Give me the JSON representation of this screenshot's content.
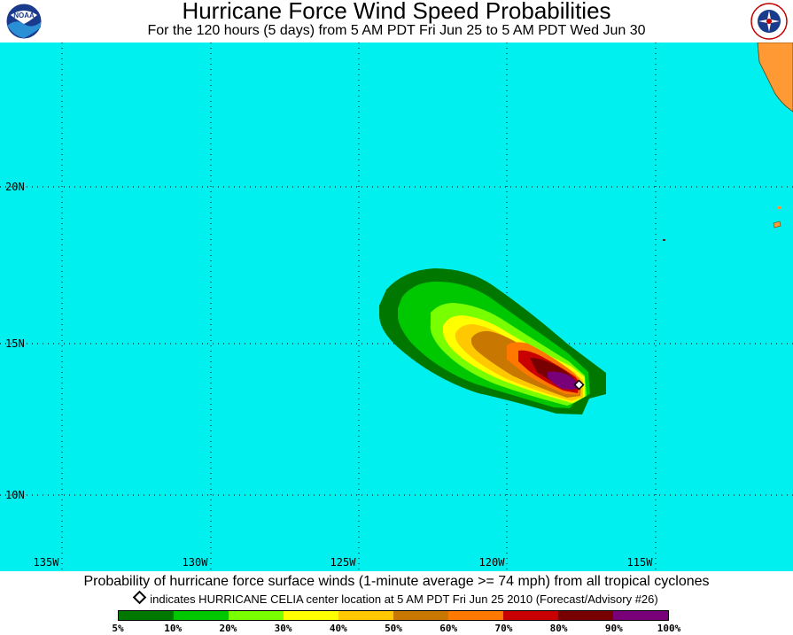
{
  "header": {
    "title": "Hurricane Force Wind Speed Probabilities",
    "subtitle": "For the 120 hours (5 days) from 5 AM PDT Fri Jun 25 to 5 AM PDT Wed Jun 30",
    "left_logo": "noaa-logo-icon",
    "right_logo": "national-weather-service-logo-icon",
    "left_logo_text": "NOAA"
  },
  "map": {
    "ocean_color": "#00f0f0",
    "land_color": "#ff9933",
    "grid_color": "#000000",
    "lat_labels": [
      "20N",
      "15N",
      "10N"
    ],
    "lon_labels": [
      "135W",
      "130W",
      "125W",
      "120W",
      "115W"
    ],
    "storm_marker": "storm-center-diamond-icon"
  },
  "footer": {
    "caption": "Probability of hurricane force surface winds (1-minute average >= 74 mph) from all tropical cyclones",
    "note": "indicates HURRICANE CELIA center location at 5 AM PDT Fri Jun 25 2010 (Forecast/Advisory #26)"
  },
  "legend": {
    "colors": [
      "#007800",
      "#00c800",
      "#78ff00",
      "#ffff00",
      "#ffc800",
      "#c87800",
      "#ff7800",
      "#c80000",
      "#780000",
      "#780078"
    ],
    "labels": [
      "5%",
      "10%",
      "20%",
      "30%",
      "40%",
      "50%",
      "60%",
      "70%",
      "80%",
      "90%",
      "100%"
    ]
  }
}
